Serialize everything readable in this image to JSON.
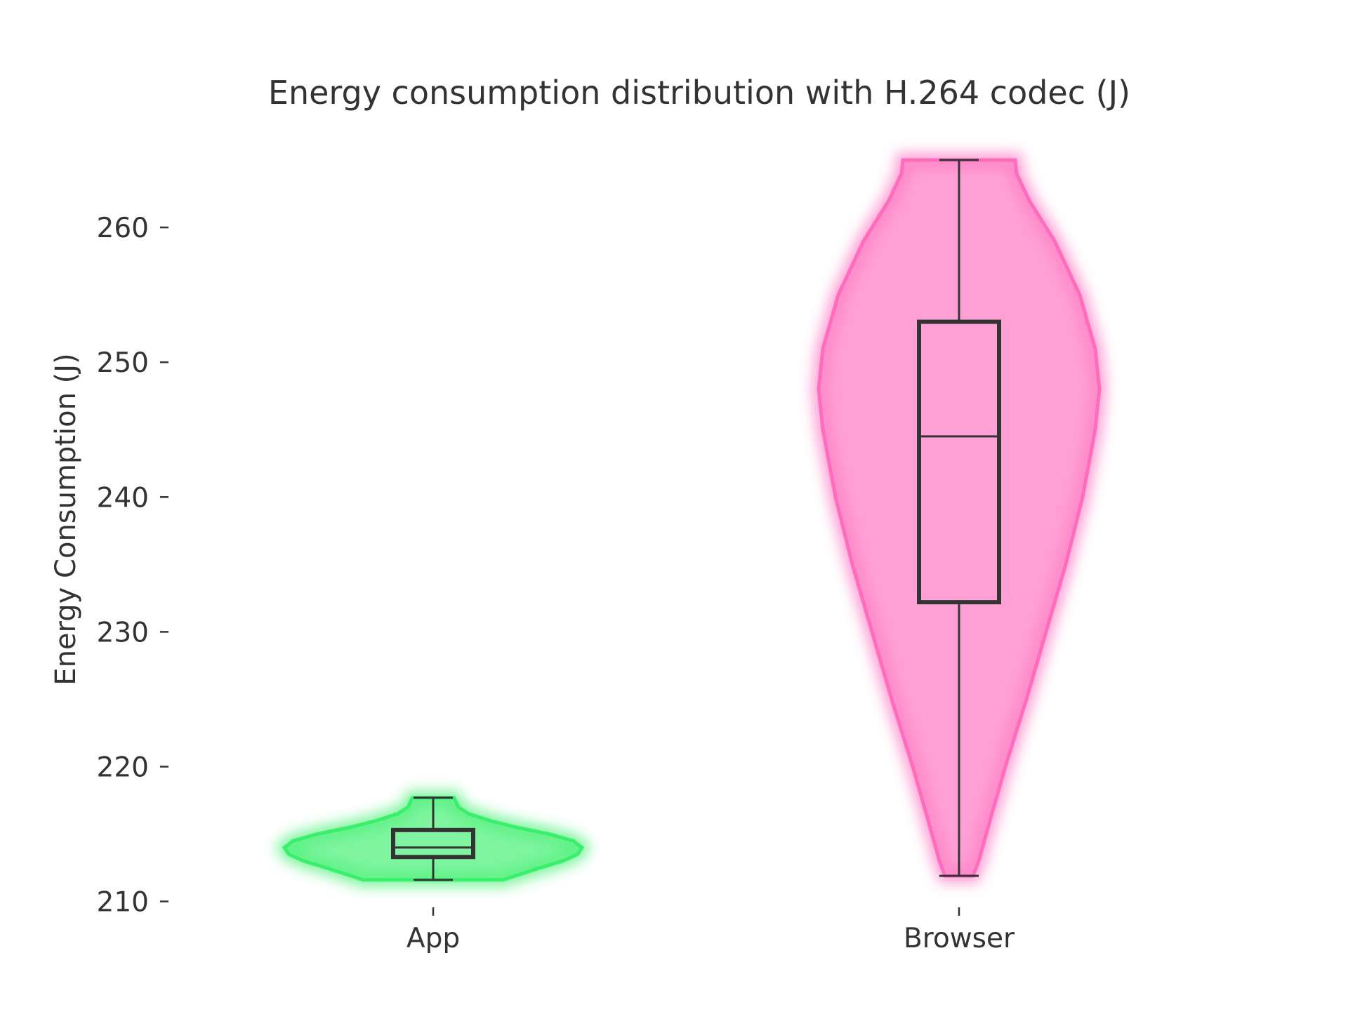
{
  "chart_data": {
    "type": "violin",
    "title": "Energy consumption distribution with H.264 codec (J)",
    "xlabel": "",
    "ylabel": "Energy Consumption (J)",
    "ylim": [
      209.2,
      267.5
    ],
    "yticks": [
      210,
      220,
      230,
      240,
      250,
      260
    ],
    "categories": [
      "App",
      "Browser"
    ],
    "grid": false,
    "series": [
      {
        "category": "App",
        "color": "#33ee66",
        "min": 211.6,
        "q1": 213.3,
        "median": 214.0,
        "q3": 215.3,
        "max": 217.7,
        "density": [
          [
            211.6,
            0.47
          ],
          [
            212.0,
            0.58
          ],
          [
            212.5,
            0.72
          ],
          [
            213.0,
            0.87
          ],
          [
            213.5,
            0.97
          ],
          [
            214.0,
            1.0
          ],
          [
            214.5,
            0.94
          ],
          [
            215.0,
            0.78
          ],
          [
            215.5,
            0.56
          ],
          [
            216.0,
            0.38
          ],
          [
            216.5,
            0.24
          ],
          [
            217.0,
            0.17
          ],
          [
            217.7,
            0.14
          ]
        ]
      },
      {
        "category": "Browser",
        "color": "#ff66bb",
        "min": 211.9,
        "q1": 232.2,
        "median": 244.5,
        "q3": 253.0,
        "max": 265.0,
        "density": [
          [
            211.9,
            0.1
          ],
          [
            213.0,
            0.14
          ],
          [
            216.0,
            0.22
          ],
          [
            220.0,
            0.33
          ],
          [
            225.0,
            0.48
          ],
          [
            230.0,
            0.62
          ],
          [
            235.0,
            0.76
          ],
          [
            240.0,
            0.88
          ],
          [
            245.0,
            0.97
          ],
          [
            248.0,
            1.0
          ],
          [
            251.0,
            0.97
          ],
          [
            255.0,
            0.86
          ],
          [
            259.0,
            0.68
          ],
          [
            262.0,
            0.5
          ],
          [
            264.0,
            0.41
          ],
          [
            265.0,
            0.4
          ]
        ]
      }
    ]
  }
}
